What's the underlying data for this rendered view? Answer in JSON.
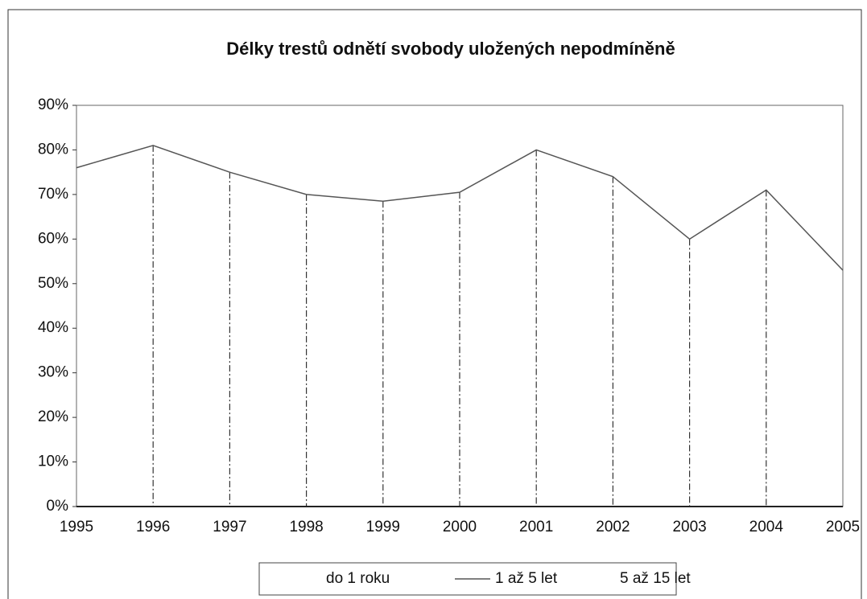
{
  "chart_data": {
    "type": "line",
    "title": "Délky trestů odnětí svobody uložených nepodmíněně",
    "categories": [
      "1995",
      "1996",
      "1997",
      "1998",
      "1999",
      "2000",
      "2001",
      "2002",
      "2003",
      "2004",
      "2005"
    ],
    "series": [
      {
        "name": "do 1 roku",
        "color": "#000000",
        "values": [
          null,
          null,
          null,
          null,
          null,
          null,
          null,
          null,
          null,
          null,
          null
        ]
      },
      {
        "name": "1 až 5 let",
        "color": "#555555",
        "values": [
          76,
          81,
          75,
          70,
          68.5,
          70.5,
          80,
          74,
          60,
          71,
          53
        ]
      },
      {
        "name": "5 až 15 let",
        "color": "#000000",
        "values": [
          null,
          null,
          null,
          null,
          null,
          null,
          null,
          null,
          null,
          null,
          null
        ]
      }
    ],
    "ylim": [
      0,
      90
    ],
    "yticks": [
      {
        "value": 0,
        "label": "0%"
      },
      {
        "value": 10,
        "label": "10%"
      },
      {
        "value": 20,
        "label": "20%"
      },
      {
        "value": 30,
        "label": "30%"
      },
      {
        "value": 40,
        "label": "40%"
      },
      {
        "value": 50,
        "label": "50%"
      },
      {
        "value": 60,
        "label": "60%"
      },
      {
        "value": 70,
        "label": "70%"
      },
      {
        "value": 80,
        "label": "80%"
      },
      {
        "value": 90,
        "label": "90%"
      }
    ],
    "drop_lines": true,
    "legend": "bottom"
  }
}
